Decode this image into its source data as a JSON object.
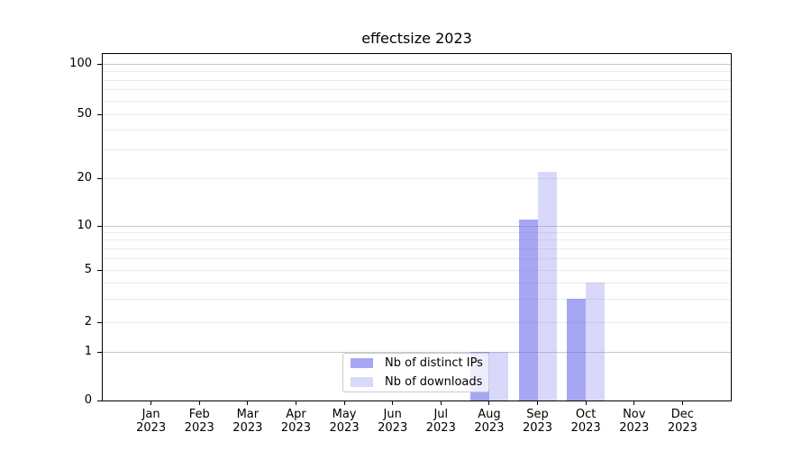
{
  "title": "effectsize 2023",
  "chart_data": {
    "type": "bar",
    "title": "effectsize 2023",
    "x_axis": {
      "months": [
        "Jan",
        "Feb",
        "Mar",
        "Apr",
        "May",
        "Jun",
        "Jul",
        "Aug",
        "Sep",
        "Oct",
        "Nov",
        "Dec"
      ],
      "year": "2023"
    },
    "y_axis": {
      "scale": "symlog",
      "ticks": [
        0,
        1,
        2,
        5,
        10,
        20,
        50,
        100
      ],
      "major_grid_values": [
        1,
        10,
        100
      ],
      "minor_grid_values": [
        2,
        3,
        4,
        5,
        6,
        7,
        8,
        9,
        20,
        30,
        40,
        50,
        60,
        70,
        80,
        90
      ],
      "range": [
        0,
        100
      ]
    },
    "series": [
      {
        "name": "Nb of distinct IPs",
        "color": "rgba(92,92,237,0.55)",
        "values": [
          0,
          0,
          0,
          0,
          0,
          0,
          0,
          1,
          11,
          3,
          0,
          0
        ]
      },
      {
        "name": "Nb of downloads",
        "color": "rgba(92,92,237,0.24)",
        "values": [
          0,
          0,
          0,
          0,
          0,
          0,
          0,
          1,
          22,
          4,
          0,
          0
        ]
      }
    ],
    "grid": "both",
    "legend_position": "lower center"
  },
  "colors": {
    "spine": "#000000",
    "major_grid": "#c9c9c9",
    "minor_grid": "#ebebeb",
    "legend_border": "#cccccc"
  }
}
